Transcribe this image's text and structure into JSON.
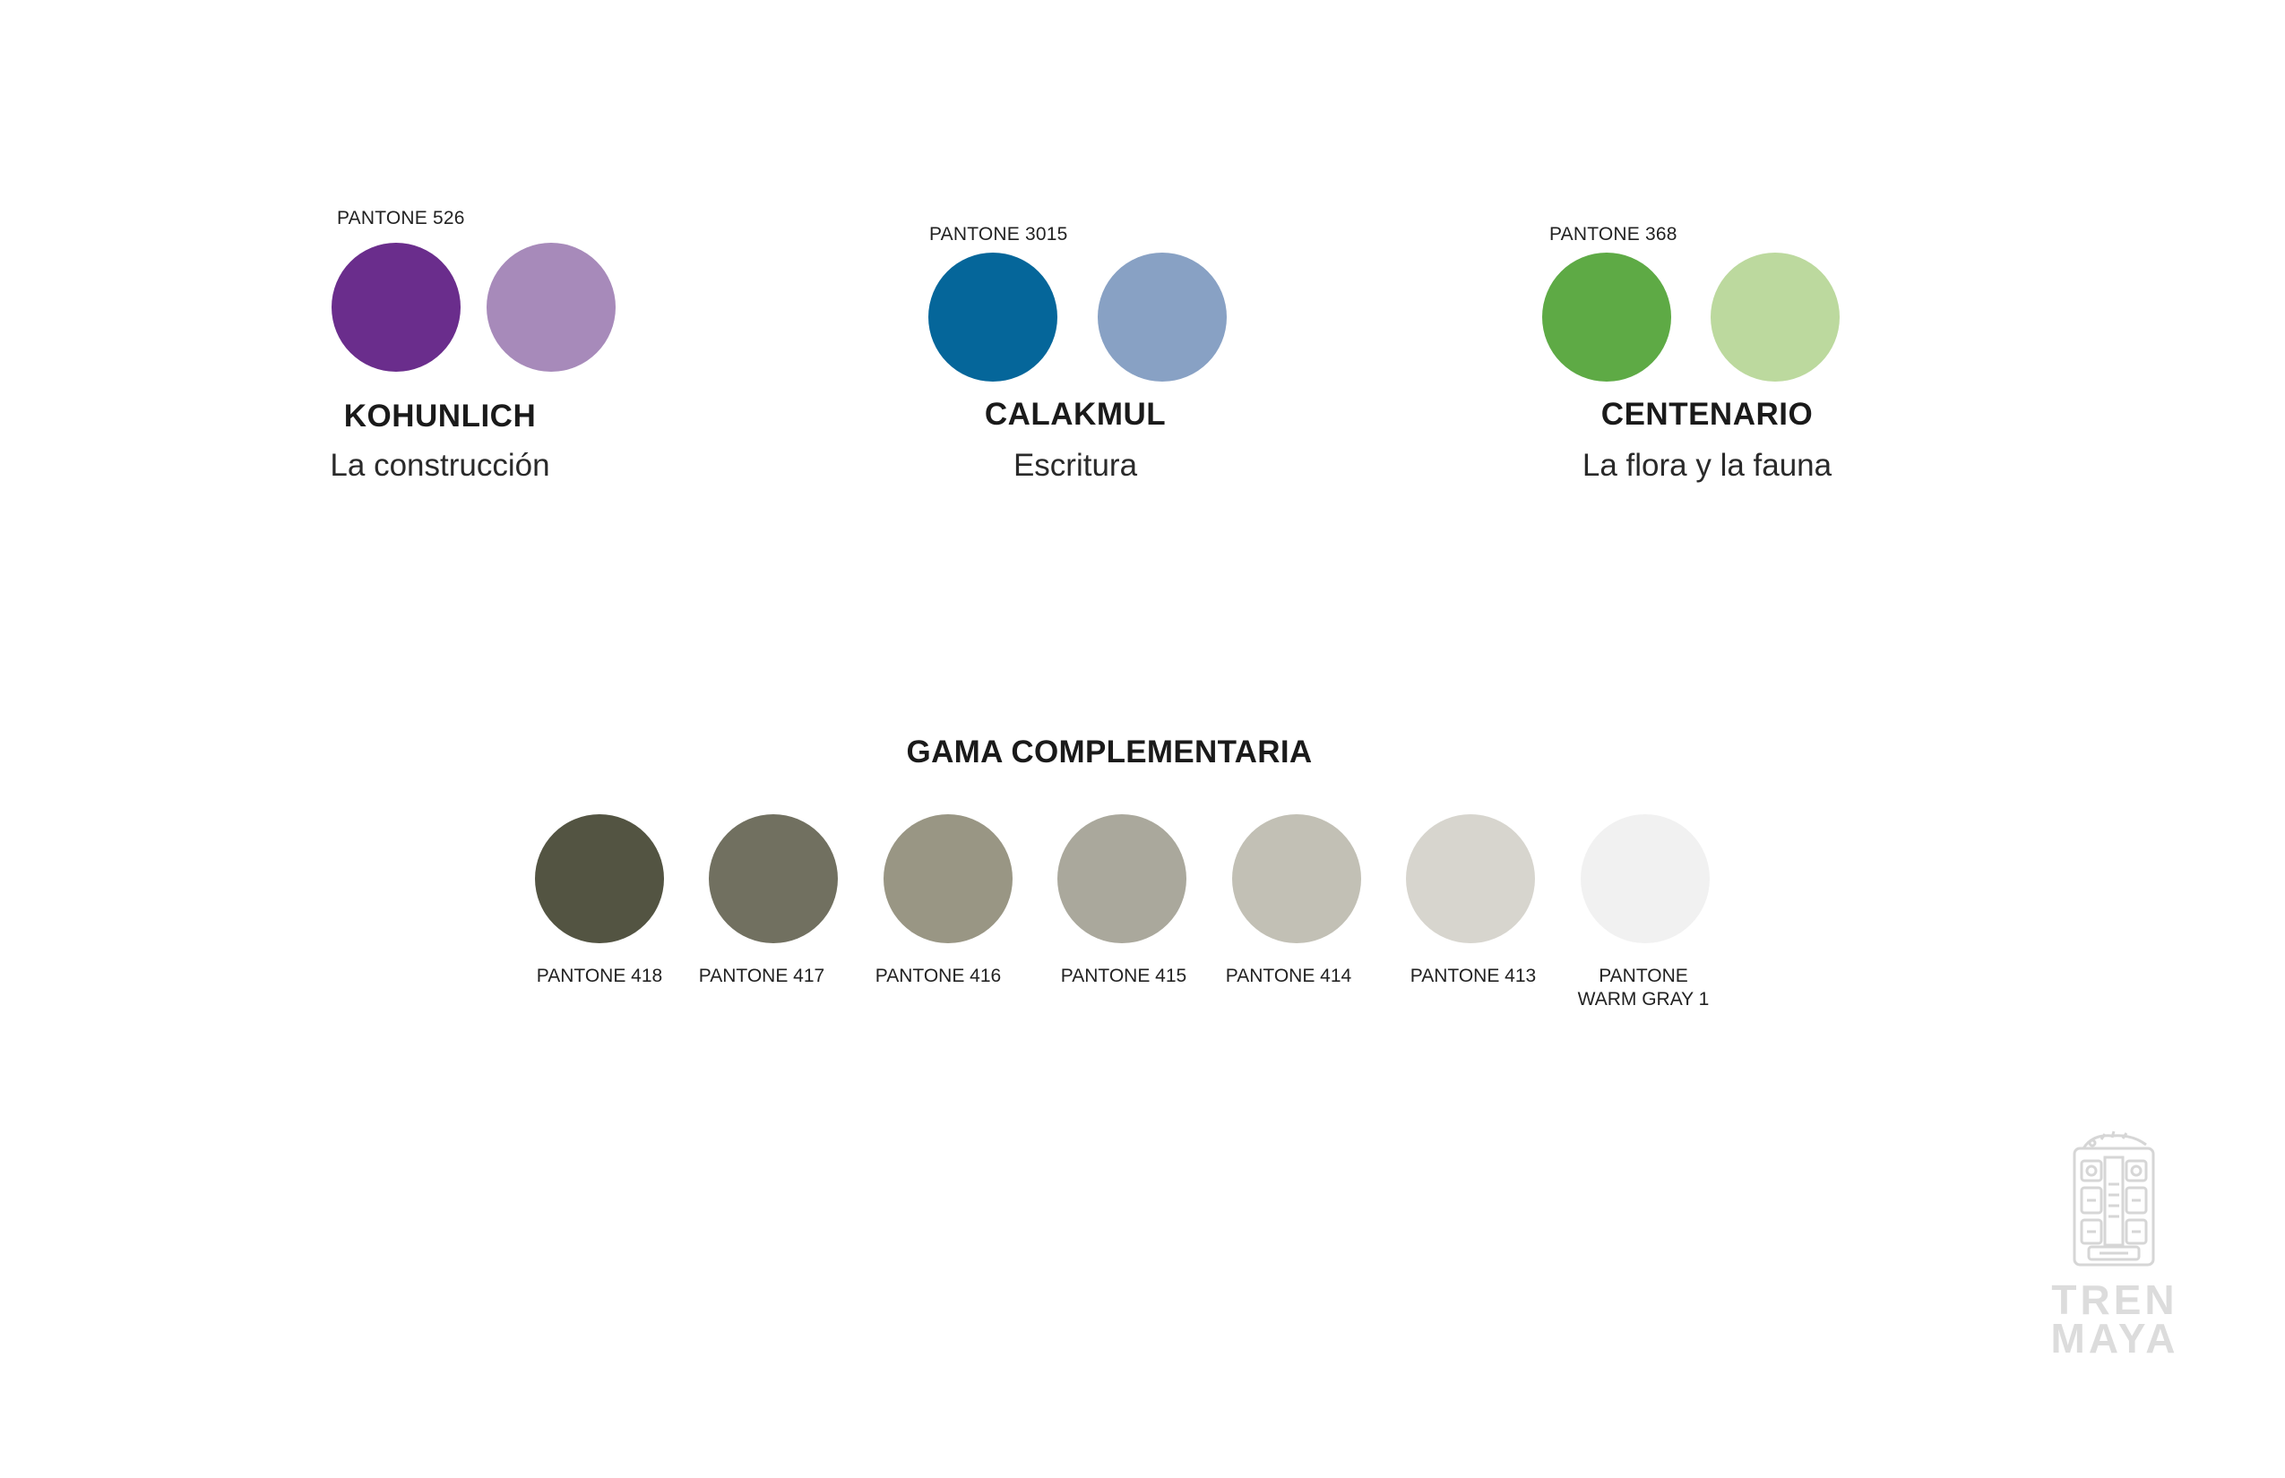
{
  "primary_groups": [
    {
      "pantone_label": "PANTONE 526",
      "name": "KOHUNLICH",
      "subtitle": "La construcción",
      "colors": [
        "#6a2d8c",
        "#a78aba"
      ]
    },
    {
      "pantone_label": "PANTONE 3015",
      "name": "CALAKMUL",
      "subtitle": "Escritura",
      "colors": [
        "#05669a",
        "#88a1c4"
      ]
    },
    {
      "pantone_label": "PANTONE 368",
      "name": "CENTENARIO",
      "subtitle": "La flora y la fauna",
      "colors": [
        "#5eaa45",
        "#bcd99e"
      ]
    }
  ],
  "complementary": {
    "title": "GAMA COMPLEMENTARIA",
    "swatches": [
      {
        "label": "PANTONE 418",
        "label2": "",
        "color": "#535442"
      },
      {
        "label": "PANTONE 417",
        "label2": "",
        "color": "#717060"
      },
      {
        "label": "PANTONE 416",
        "label2": "",
        "color": "#999684"
      },
      {
        "label": "PANTONE 415",
        "label2": "",
        "color": "#aaa89c"
      },
      {
        "label": "PANTONE 414",
        "label2": "",
        "color": "#c2c0b5"
      },
      {
        "label": "PANTONE 413",
        "label2": "",
        "color": "#d7d5ce"
      },
      {
        "label": "PANTONE",
        "label2": "WARM GRAY 1",
        "color": "#f1f1f1"
      }
    ]
  },
  "logo": {
    "line1": "TREN",
    "line2": "MAYA",
    "icon": "tren-maya-glyph-icon",
    "color": "#dcdcdc"
  }
}
